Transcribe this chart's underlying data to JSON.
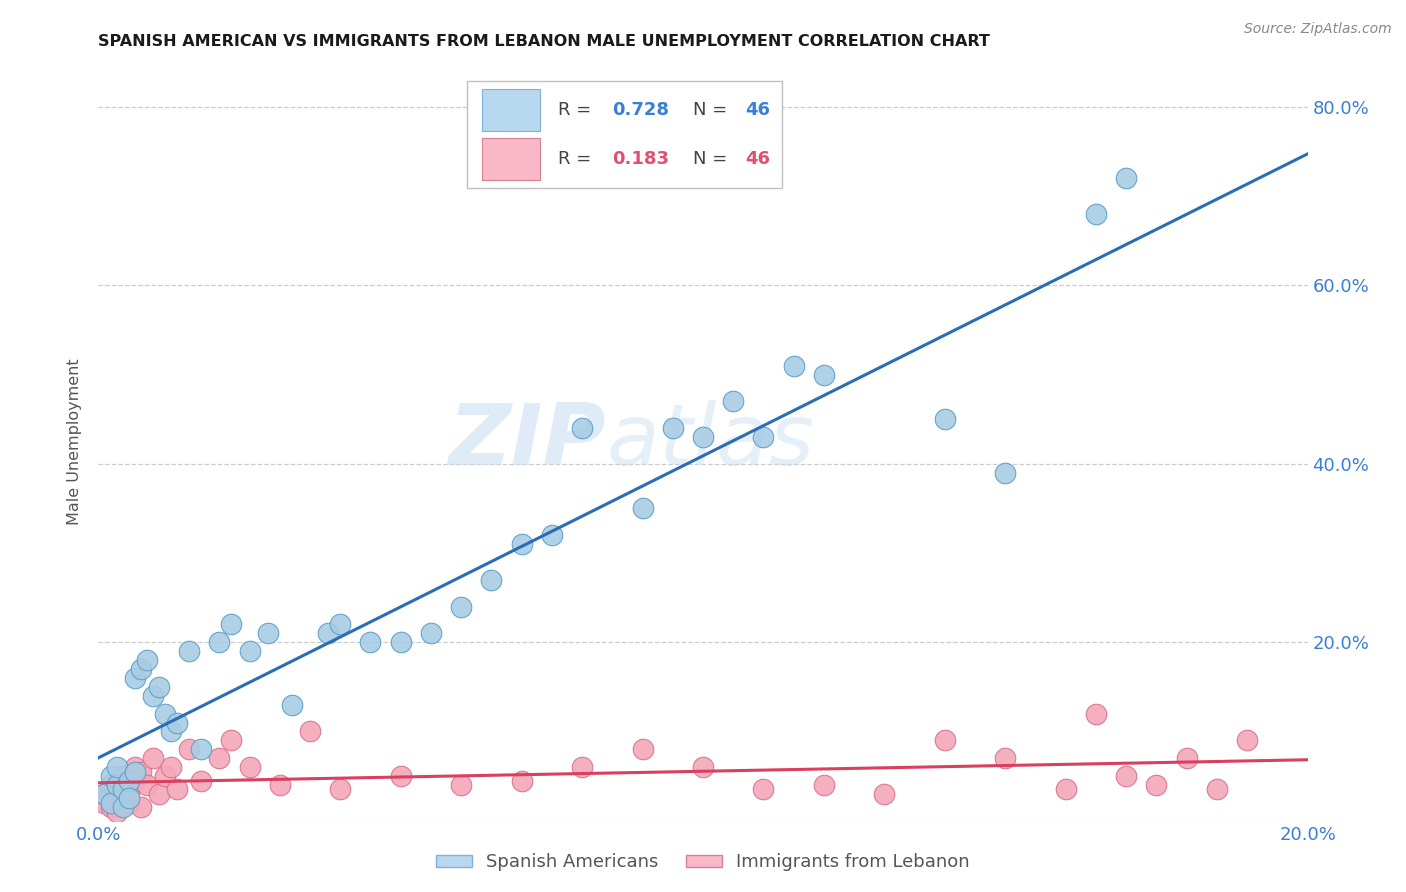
{
  "title": "SPANISH AMERICAN VS IMMIGRANTS FROM LEBANON MALE UNEMPLOYMENT CORRELATION CHART",
  "source": "Source: ZipAtlas.com",
  "ylabel": "Male Unemployment",
  "xlim": [
    0.0,
    0.2
  ],
  "ylim": [
    0.0,
    0.85
  ],
  "blue_R": 0.728,
  "blue_N": 46,
  "pink_R": 0.183,
  "pink_N": 46,
  "blue_scatter_color": "#a8cce4",
  "blue_scatter_edge": "#5b9ec9",
  "pink_scatter_color": "#f4a8b8",
  "pink_scatter_edge": "#d97090",
  "blue_line_color": "#2b6cb8",
  "pink_line_color": "#d94060",
  "blue_text_color": "#3a7fd4",
  "pink_text_color": "#e05070",
  "tick_label_color": "#3a7fd4",
  "watermark_color": "#d0e4f4",
  "grid_color": "#cccccc",
  "background_color": "#ffffff",
  "spanish_americans_x": [
    0.001,
    0.002,
    0.002,
    0.003,
    0.003,
    0.004,
    0.004,
    0.005,
    0.005,
    0.006,
    0.006,
    0.007,
    0.008,
    0.009,
    0.01,
    0.011,
    0.012,
    0.013,
    0.015,
    0.017,
    0.02,
    0.022,
    0.025,
    0.028,
    0.032,
    0.038,
    0.04,
    0.045,
    0.05,
    0.055,
    0.06,
    0.065,
    0.07,
    0.075,
    0.08,
    0.09,
    0.095,
    0.1,
    0.105,
    0.11,
    0.115,
    0.12,
    0.14,
    0.15,
    0.165,
    0.17
  ],
  "spanish_americans_y": [
    0.03,
    0.05,
    0.02,
    0.04,
    0.06,
    0.015,
    0.035,
    0.045,
    0.025,
    0.055,
    0.16,
    0.17,
    0.18,
    0.14,
    0.15,
    0.12,
    0.1,
    0.11,
    0.19,
    0.08,
    0.2,
    0.22,
    0.19,
    0.21,
    0.13,
    0.21,
    0.22,
    0.2,
    0.2,
    0.21,
    0.24,
    0.27,
    0.31,
    0.32,
    0.44,
    0.35,
    0.44,
    0.43,
    0.47,
    0.43,
    0.51,
    0.5,
    0.45,
    0.39,
    0.68,
    0.72
  ],
  "lebanon_x": [
    0.001,
    0.001,
    0.002,
    0.002,
    0.003,
    0.003,
    0.004,
    0.004,
    0.005,
    0.005,
    0.006,
    0.006,
    0.007,
    0.007,
    0.008,
    0.009,
    0.01,
    0.011,
    0.012,
    0.013,
    0.015,
    0.017,
    0.02,
    0.022,
    0.025,
    0.03,
    0.035,
    0.04,
    0.05,
    0.06,
    0.07,
    0.08,
    0.09,
    0.1,
    0.11,
    0.12,
    0.13,
    0.14,
    0.15,
    0.16,
    0.165,
    0.17,
    0.175,
    0.18,
    0.185,
    0.19
  ],
  "lebanon_y": [
    0.02,
    0.03,
    0.015,
    0.04,
    0.01,
    0.035,
    0.025,
    0.05,
    0.02,
    0.03,
    0.045,
    0.06,
    0.015,
    0.055,
    0.04,
    0.07,
    0.03,
    0.05,
    0.06,
    0.035,
    0.08,
    0.045,
    0.07,
    0.09,
    0.06,
    0.04,
    0.1,
    0.035,
    0.05,
    0.04,
    0.045,
    0.06,
    0.08,
    0.06,
    0.035,
    0.04,
    0.03,
    0.09,
    0.07,
    0.035,
    0.12,
    0.05,
    0.04,
    0.07,
    0.035,
    0.09
  ]
}
